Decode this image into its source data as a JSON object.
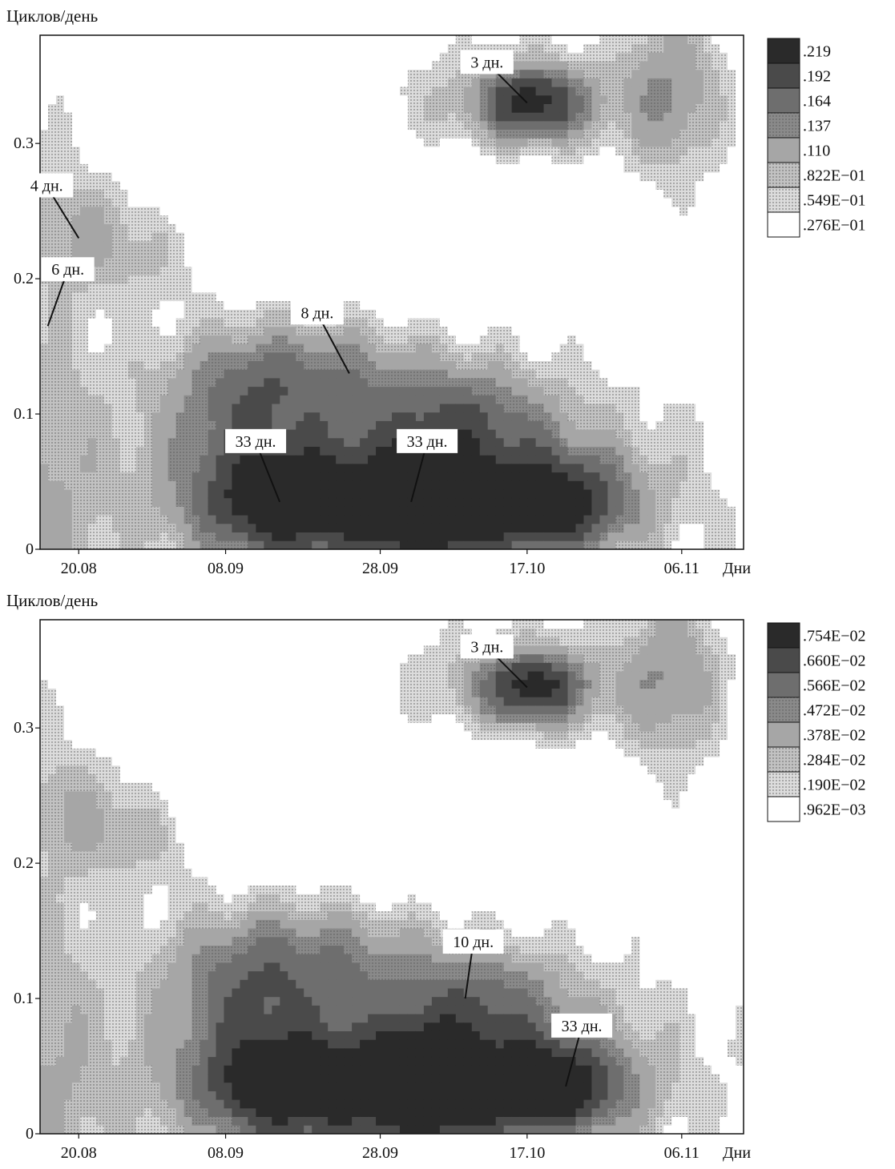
{
  "panels": [
    {
      "ylabel": "Циклов/день",
      "xlabel": "Дни",
      "legend": [
        ".219",
        ".192",
        ".164",
        ".137",
        ".110",
        ".822E−01",
        ".549E−01",
        ".276E−01"
      ],
      "annotations": [
        "3 дн.",
        "4 дн.",
        "6 дн.",
        "8 дн.",
        "33 дн.",
        "33 дн."
      ]
    },
    {
      "ylabel": "Циклов/день",
      "xlabel": "Дни",
      "legend": [
        ".754E−02",
        ".660E−02",
        ".566E−02",
        ".472E−02",
        ".378E−02",
        ".284E−02",
        ".190E−02",
        ".962E−03"
      ],
      "annotations": [
        "3 дн.",
        "10 дн.",
        "33 дн."
      ]
    }
  ],
  "chart_data": [
    {
      "type": "heatmap",
      "ylabel": "Циклов/день",
      "xlabel": "Дни",
      "x_ticks": [
        "20.08",
        "08.09",
        "28.09",
        "17.10",
        "06.11"
      ],
      "y_ticks": [
        "0",
        "0.1",
        "0.2",
        "0.3"
      ],
      "ylim": [
        0,
        0.38
      ],
      "x_range": [
        "15.08",
        "14.11"
      ],
      "legend_levels": [
        ".219",
        ".192",
        ".164",
        ".137",
        ".110",
        ".822E−01",
        ".549E−01",
        ".276E−01"
      ],
      "legend_position": "right",
      "annotations": [
        {
          "label": "3 дн.",
          "date": "17.10",
          "y": 0.33
        },
        {
          "label": "4 дн.",
          "date": "20.08",
          "y": 0.23
        },
        {
          "label": "6 дн.",
          "date": "16.08",
          "y": 0.165
        },
        {
          "label": "8 дн.",
          "date": "24.09",
          "y": 0.13
        },
        {
          "label": "33 дн.",
          "date": "15.09",
          "y": 0.035
        },
        {
          "label": "33 дн.",
          "date": "02.10",
          "y": 0.035
        }
      ]
    },
    {
      "type": "heatmap",
      "ylabel": "Циклов/день",
      "xlabel": "Дни",
      "x_ticks": [
        "20.08",
        "08.09",
        "28.09",
        "17.10",
        "06.11"
      ],
      "y_ticks": [
        "0",
        "0.1",
        "0.2",
        "0.3"
      ],
      "ylim": [
        0,
        0.38
      ],
      "x_range": [
        "15.08",
        "14.11"
      ],
      "legend_levels": [
        ".754E−02",
        ".660E−02",
        ".566E−02",
        ".472E−02",
        ".378E−02",
        ".284E−02",
        ".190E−02",
        ".962E−03"
      ],
      "legend_position": "right",
      "annotations": [
        {
          "label": "3 дн.",
          "date": "17.10",
          "y": 0.33
        },
        {
          "label": "10 дн.",
          "date": "09.10",
          "y": 0.1
        },
        {
          "label": "33 дн.",
          "date": "22.10",
          "y": 0.035
        }
      ]
    }
  ]
}
